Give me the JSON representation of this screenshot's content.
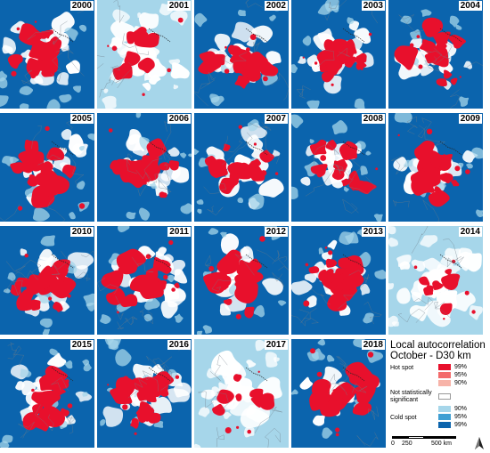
{
  "years": [
    "2000",
    "2001",
    "2002",
    "2003",
    "2004",
    "2005",
    "2006",
    "2007",
    "2008",
    "2009",
    "2010",
    "2011",
    "2012",
    "2013",
    "2014",
    "2015",
    "2016",
    "2017",
    "2018"
  ],
  "panel_background": {
    "2000": "dark",
    "2001": "light",
    "2002": "dark",
    "2003": "dark",
    "2004": "dark",
    "2005": "dark",
    "2006": "dark",
    "2007": "dark",
    "2008": "dark",
    "2009": "dark",
    "2010": "dark",
    "2011": "dark",
    "2012": "dark",
    "2013": "dark",
    "2014": "light",
    "2015": "dark",
    "2016": "dark",
    "2017": "light",
    "2018": "dark"
  },
  "legend": {
    "title_line1": "Local autocorrelation",
    "title_line2": "October - D30 km",
    "hot_spot_label": "Hot spot",
    "not_significant_label": "Not statistically significant",
    "cold_spot_label": "Cold spot",
    "hot_classes": [
      {
        "label": "99%",
        "color": "#e8102c"
      },
      {
        "label": "95%",
        "color": "#f36b6b"
      },
      {
        "label": "90%",
        "color": "#f7b3a8"
      }
    ],
    "not_significant_color": "#ffffff",
    "cold_classes": [
      {
        "label": "90%",
        "color": "#a6d6ea"
      },
      {
        "label": "95%",
        "color": "#3f9fd3"
      },
      {
        "label": "99%",
        "color": "#0b64ad"
      }
    ]
  },
  "scale_bar": {
    "labels": [
      "0",
      "250",
      "500 km"
    ]
  },
  "colors": {
    "cold_99": "#0b64ad",
    "cold_90": "#a6d6ea",
    "hot_99": "#e8102c",
    "not_significant": "#ffffff",
    "borders": "#6e7a86"
  },
  "north_arrow_icon": "north-arrow-icon"
}
